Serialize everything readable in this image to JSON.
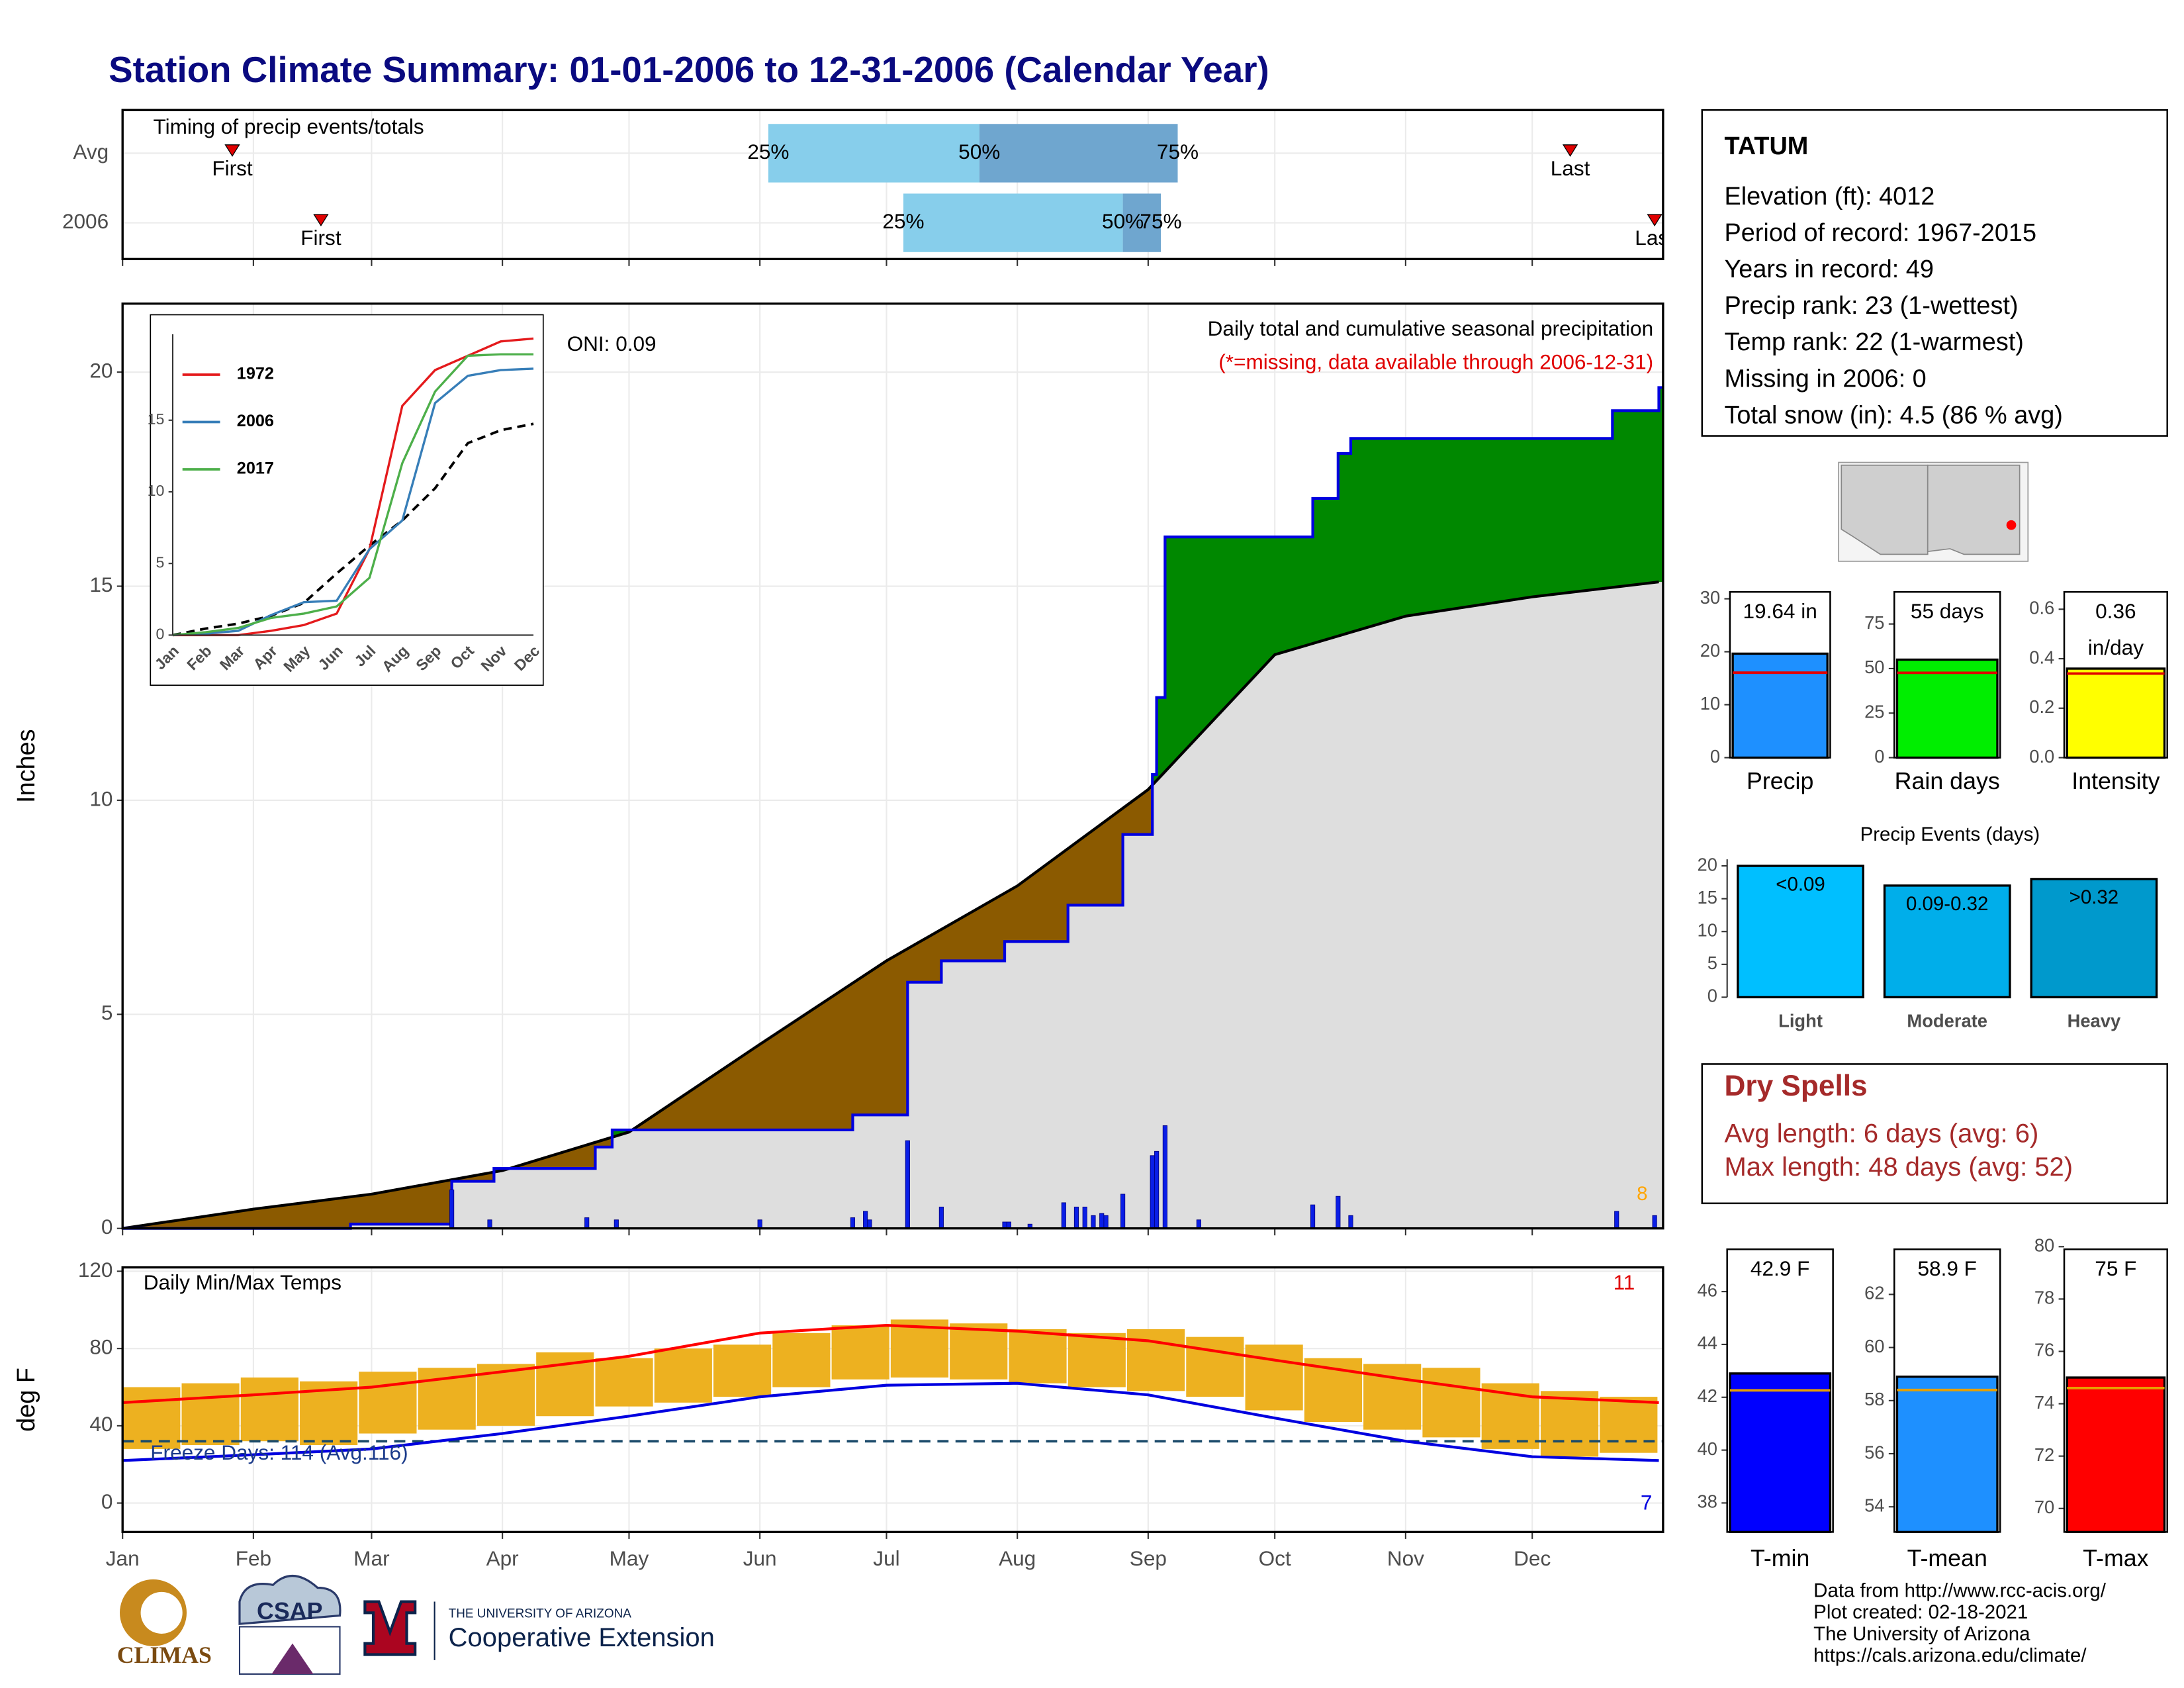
{
  "title": "Station Climate Summary: 01-01-2006 to 12-31-2006 (Calendar Year)",
  "chart_data": [
    {
      "type": "timing",
      "title": "Timing of precip events/totals",
      "xlim": [
        1,
        366
      ],
      "categories": [
        "Avg",
        "2006"
      ],
      "first_label": "First",
      "last_label": "Last",
      "quantile_labels": [
        "25%",
        "50%",
        "75%"
      ],
      "rows": [
        {
          "first": 27,
          "q25": 154,
          "q50": 204,
          "q75": 251,
          "last": 344
        },
        {
          "first": 48,
          "q25": 186,
          "q50": 238,
          "q75": 247,
          "last": 364
        }
      ],
      "colors": [
        "#87ceeb",
        "#6fa6cf"
      ],
      "marker_color": "#e00000"
    },
    {
      "type": "cumulative-precip",
      "title": "Daily total and cumulative seasonal precipitation",
      "subtitle": "(*=missing, data available through 2006-12-31)",
      "annotation": "ONI: 0.09",
      "count_label": "8",
      "y_label": "Inches",
      "xlim": [
        1,
        366
      ],
      "ylim": [
        0,
        21.6
      ],
      "yticks": [
        0,
        5,
        10,
        15,
        20
      ],
      "average": {
        "x": [
          1,
          32,
          60,
          91,
          121,
          152,
          182,
          213,
          244,
          274,
          305,
          335,
          365
        ],
        "values": [
          0,
          0.45,
          0.8,
          1.35,
          2.25,
          4.3,
          6.25,
          8.0,
          10.25,
          13.4,
          14.3,
          14.75,
          15.1
        ]
      },
      "observed": {
        "x": [
          1,
          55,
          79,
          89,
          113,
          117,
          174,
          187,
          195,
          210,
          225,
          238,
          245,
          246,
          248,
          283,
          289,
          292,
          354,
          365
        ],
        "values": [
          0,
          0.1,
          1.1,
          1.4,
          1.9,
          2.3,
          2.65,
          5.75,
          6.25,
          6.7,
          7.55,
          9.2,
          10.6,
          12.4,
          16.15,
          17.05,
          18.1,
          18.45,
          19.1,
          19.64
        ]
      },
      "daily": {
        "x": [
          79,
          88,
          111,
          118,
          152,
          174,
          177,
          178,
          187,
          195,
          210,
          211,
          216,
          224,
          227,
          229,
          231,
          233,
          234,
          238,
          245,
          246,
          248,
          256,
          283,
          289,
          292,
          355,
          364
        ],
        "values": [
          0.9,
          0.2,
          0.25,
          0.2,
          0.2,
          0.25,
          0.4,
          0.2,
          2.05,
          0.5,
          0.15,
          0.15,
          0.1,
          0.6,
          0.5,
          0.5,
          0.3,
          0.35,
          0.3,
          0.8,
          1.7,
          1.8,
          2.4,
          0.2,
          0.55,
          0.75,
          0.3,
          0.4,
          0.3
        ]
      },
      "surplus_color": "#008800",
      "deficit_color": "#8b5a00",
      "normal_color": "#dedede",
      "line_color": "#0000e0",
      "bar_color": "#0a1ee6"
    },
    {
      "type": "inset-lines",
      "categories": [
        "Jan",
        "Feb",
        "Mar",
        "Apr",
        "May",
        "Jun",
        "Jul",
        "Aug",
        "Sep",
        "Oct",
        "Nov",
        "Dec"
      ],
      "ylim": [
        0,
        21
      ],
      "yticks": [
        0,
        5,
        10,
        15
      ],
      "series": [
        {
          "name": "1972",
          "color": "#e41a1c",
          "values": [
            0,
            0,
            0,
            0.3,
            0.7,
            1.5,
            6,
            16,
            18.5,
            19.5,
            20.5,
            20.7
          ]
        },
        {
          "name": "2006",
          "color": "#377eb8",
          "values": [
            0,
            0.1,
            0.3,
            1.4,
            2.3,
            2.4,
            6,
            8,
            16.2,
            18.1,
            18.5,
            18.6
          ]
        },
        {
          "name": "2017",
          "color": "#4daf4a",
          "values": [
            0,
            0.2,
            0.5,
            1.2,
            1.5,
            2,
            4,
            12,
            17,
            19.5,
            19.6,
            19.6
          ]
        }
      ],
      "average": [
        0,
        0.45,
        0.8,
        1.35,
        2.25,
        4.3,
        6.25,
        8.0,
        10.25,
        13.4,
        14.3,
        14.75
      ]
    },
    {
      "type": "temperature",
      "title": "Daily Min/Max Temps",
      "y_label": "deg F",
      "annotation": "Freeze Days: 114 (Avg:116)",
      "max_count": "11",
      "min_count": "7",
      "xlim": [
        1,
        366
      ],
      "ylim": [
        -15,
        122
      ],
      "yticks": [
        0,
        40,
        80,
        120
      ],
      "freeze": 32,
      "xticks": [
        {
          "value": 1,
          "label": "Jan"
        },
        {
          "value": 32,
          "label": "Feb"
        },
        {
          "value": 60,
          "label": "Mar"
        },
        {
          "value": 91,
          "label": "Apr"
        },
        {
          "value": 121,
          "label": "May"
        },
        {
          "value": 152,
          "label": "Jun"
        },
        {
          "value": 182,
          "label": "Jul"
        },
        {
          "value": 213,
          "label": "Aug"
        },
        {
          "value": 244,
          "label": "Sep"
        },
        {
          "value": 274,
          "label": "Oct"
        },
        {
          "value": 305,
          "label": "Nov"
        },
        {
          "value": 335,
          "label": "Dec"
        }
      ],
      "x": [
        1,
        15,
        29,
        43,
        57,
        71,
        85,
        99,
        113,
        127,
        141,
        155,
        169,
        183,
        197,
        211,
        225,
        239,
        253,
        267,
        281,
        295,
        309,
        323,
        337,
        351
      ],
      "max": [
        60,
        62,
        65,
        63,
        68,
        70,
        72,
        78,
        75,
        80,
        82,
        88,
        92,
        95,
        93,
        90,
        88,
        90,
        86,
        82,
        75,
        72,
        70,
        62,
        58,
        55
      ],
      "min": [
        28,
        30,
        32,
        30,
        36,
        38,
        40,
        45,
        50,
        52,
        55,
        60,
        64,
        65,
        64,
        62,
        60,
        58,
        55,
        48,
        42,
        38,
        34,
        28,
        24,
        26
      ],
      "avg_x": [
        1,
        32,
        60,
        91,
        121,
        152,
        182,
        213,
        244,
        274,
        305,
        335,
        365
      ],
      "avg_max": [
        52,
        56,
        60,
        68,
        76,
        88,
        92,
        89,
        84,
        74,
        64,
        55,
        52
      ],
      "avg_min": [
        22,
        25,
        28,
        36,
        45,
        55,
        61,
        62,
        56,
        44,
        32,
        24,
        22
      ],
      "bar_color": "#edb120",
      "max_color": "#ff0000",
      "min_color": "#0000e0",
      "freeze_color": "#1a4a6a"
    },
    {
      "type": "gauge",
      "label": "Precip",
      "value": 19.64,
      "value_label": "19.64 in",
      "average": 16.05,
      "ylim": [
        0,
        31.3
      ],
      "yticks": [
        0,
        10,
        20,
        30
      ],
      "color": "#1e90ff",
      "average_color": "#e00000"
    },
    {
      "type": "gauge",
      "label": "Rain days",
      "value": 55,
      "value_label": "55 days",
      "average": 47.6,
      "ylim": [
        0,
        93
      ],
      "yticks": [
        0,
        25,
        50,
        75
      ],
      "color": "#00ee00",
      "average_color": "#e00000"
    },
    {
      "type": "gauge",
      "label": "Intensity",
      "value": 0.36,
      "value_label": "0.36 in/day",
      "average": 0.34,
      "ylim": [
        0,
        0.67
      ],
      "yticks": [
        {
          "value": 0,
          "label": "0.0"
        },
        0.2,
        0.4,
        0.6
      ],
      "color": "#ffff00",
      "average_color": "#e00000"
    },
    {
      "type": "bar",
      "title": "Precip Events (days)",
      "categories": [
        "Light",
        "Moderate",
        "Heavy"
      ],
      "values": [
        20,
        17,
        18
      ],
      "bar_labels": [
        "<0.09",
        "0.09-0.32",
        ">0.32"
      ],
      "colors": [
        "#00bfff",
        "#00aeea",
        "#0099cc"
      ],
      "ylim": [
        0,
        21
      ],
      "yticks": [
        0,
        5,
        10,
        15,
        20
      ]
    },
    {
      "type": "gauge",
      "label": "T-min",
      "value": 42.9,
      "value_label": "42.9 F",
      "average": 42.26,
      "ylim": [
        36.9,
        47.6
      ],
      "yticks": [
        38,
        40,
        42,
        44,
        46
      ],
      "color": "#0000ff",
      "average_color": "#e8a000"
    },
    {
      "type": "gauge",
      "label": "T-mean",
      "value": 58.9,
      "value_label": "58.9 F",
      "average": 58.4,
      "ylim": [
        53.05,
        63.7
      ],
      "yticks": [
        54,
        56,
        58,
        60,
        62
      ],
      "color": "#1e90ff",
      "average_color": "#e8a000"
    },
    {
      "type": "gauge",
      "label": "T-max",
      "value": 75,
      "value_label": "75 F",
      "average": 74.6,
      "ylim": [
        69.1,
        79.9
      ],
      "yticks": [
        70,
        72,
        74,
        76,
        78,
        80
      ],
      "color": "#ff0000",
      "average_color": "#e8a000"
    }
  ],
  "station": {
    "name": "TATUM",
    "lines": [
      "Elevation (ft): 4012",
      "Period of record: 1967-2015",
      "Years in record: 49",
      "Precip rank: 23 (1-wettest)",
      "Temp rank: 22 (1-warmest)",
      "Missing in 2006: 0",
      "Total snow (in): 4.5 (86 % avg)"
    ]
  },
  "dry_spells": {
    "title": "Dry Spells",
    "lines": [
      "Avg length: 6 days (avg: 6)",
      "Max length: 48 days (avg: 52)"
    ]
  },
  "footer": {
    "lines": [
      "Data from http://www.rcc-acis.org/",
      "Plot created: 02-18-2021",
      "The University of Arizona",
      "https://cals.arizona.edu/climate/"
    ],
    "logos": [
      "CLIMAS",
      "CSAP",
      "THE UNIVERSITY OF ARIZONA",
      "Cooperative Extension"
    ]
  }
}
